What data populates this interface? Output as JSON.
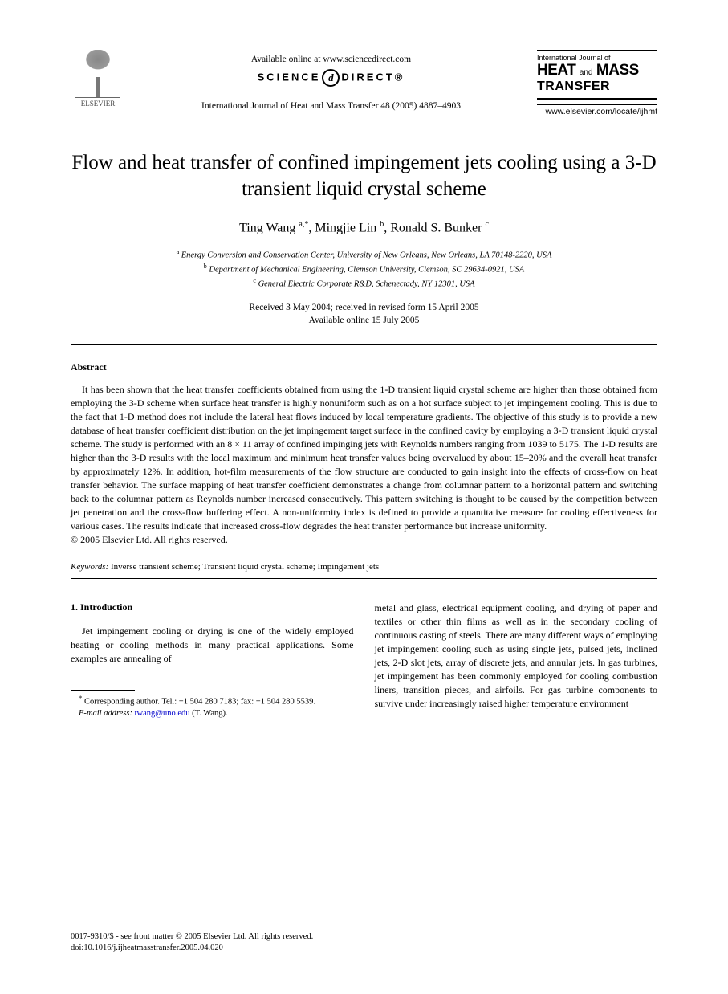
{
  "header": {
    "publisher": "ELSEVIER",
    "available_online": "Available online at www.sciencedirect.com",
    "sciencedirect_left": "SCIENCE",
    "sciencedirect_d": "d",
    "sciencedirect_right": "DIRECT®",
    "journal_reference": "International Journal of Heat and Mass Transfer 48 (2005) 4887–4903",
    "journal_box": {
      "line1": "International Journal of",
      "heat": "HEAT",
      "and": "and",
      "mass": "MASS",
      "transfer": "TRANSFER"
    },
    "journal_url": "www.elsevier.com/locate/ijhmt"
  },
  "title": "Flow and heat transfer of confined impingement jets cooling using a 3-D transient liquid crystal scheme",
  "authors": {
    "a1_name": "Ting Wang ",
    "a1_sup": "a,*",
    "a2_name": ", Mingjie Lin ",
    "a2_sup": "b",
    "a3_name": ", Ronald S. Bunker ",
    "a3_sup": "c"
  },
  "affiliations": {
    "a": "Energy Conversion and Conservation Center, University of New Orleans, New Orleans, LA 70148-2220, USA",
    "b": "Department of Mechanical Engineering, Clemson University, Clemson, SC 29634-0921, USA",
    "c": "General Electric Corporate R&D, Schenectady, NY 12301, USA"
  },
  "dates": {
    "received": "Received 3 May 2004; received in revised form 15 April 2005",
    "online": "Available online 15 July 2005"
  },
  "abstract": {
    "label": "Abstract",
    "text": "It has been shown that the heat transfer coefficients obtained from using the 1-D transient liquid crystal scheme are higher than those obtained from employing the 3-D scheme when surface heat transfer is highly nonuniform such as on a hot surface subject to jet impingement cooling. This is due to the fact that 1-D method does not include the lateral heat flows induced by local temperature gradients. The objective of this study is to provide a new database of heat transfer coefficient distribution on the jet impingement target surface in the confined cavity by employing a 3-D transient liquid crystal scheme. The study is performed with an 8 × 11 array of confined impinging jets with Reynolds numbers ranging from 1039 to 5175. The 1-D results are higher than the 3-D results with the local maximum and minimum heat transfer values being overvalued by about 15–20% and the overall heat transfer by approximately 12%. In addition, hot-film measurements of the flow structure are conducted to gain insight into the effects of cross-flow on heat transfer behavior. The surface mapping of heat transfer coefficient demonstrates a change from columnar pattern to a horizontal pattern and switching back to the columnar pattern as Reynolds number increased consecutively. This pattern switching is thought to be caused by the competition between jet penetration and the cross-flow buffering effect. A non-uniformity index is defined to provide a quantitative measure for cooling effectiveness for various cases. The results indicate that increased cross-flow degrades the heat transfer performance but increase uniformity.",
    "copyright": "© 2005 Elsevier Ltd. All rights reserved."
  },
  "keywords": {
    "label": "Keywords:",
    "text": " Inverse transient scheme; Transient liquid crystal scheme; Impingement jets"
  },
  "introduction": {
    "heading": "1. Introduction",
    "col1": "Jet impingement cooling or drying is one of the widely employed heating or cooling methods in many practical applications. Some examples are annealing of",
    "col2": "metal and glass, electrical equipment cooling, and drying of paper and textiles or other thin films as well as in the secondary cooling of continuous casting of steels. There are many different ways of employing jet impingement cooling such as using single jets, pulsed jets, inclined jets, 2-D slot jets, array of discrete jets, and annular jets. In gas turbines, jet impingement has been commonly employed for cooling combustion liners, transition pieces, and airfoils. For gas turbine components to survive under increasingly raised higher temperature environment"
  },
  "footnote": {
    "corresponding": "Corresponding author. Tel.: +1 504 280 7183; fax: +1 504 280 5539.",
    "email_label": "E-mail address:",
    "email": "twang@uno.edu",
    "email_name": " (T. Wang)."
  },
  "footer": {
    "line1": "0017-9310/$ - see front matter © 2005 Elsevier Ltd. All rights reserved.",
    "line2": "doi:10.1016/j.ijheatmasstransfer.2005.04.020"
  },
  "colors": {
    "text": "#000000",
    "background": "#ffffff",
    "link": "#0000cc",
    "logo_gray": "#4a4a4a"
  }
}
